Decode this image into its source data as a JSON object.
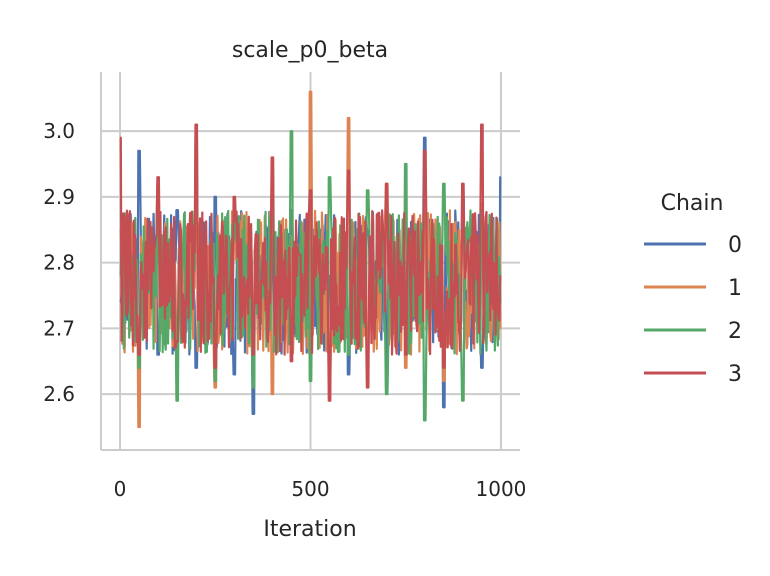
{
  "chart_data": {
    "type": "line",
    "title": "scale_p0_beta",
    "xlabel": "Iteration",
    "ylabel": "",
    "xlim": [
      -50,
      1050
    ],
    "ylim": [
      2.515,
      3.09
    ],
    "xticks": [
      0,
      500,
      1000
    ],
    "xtick_labels": [
      "0",
      "500",
      "1000"
    ],
    "yticks": [
      2.6,
      2.7,
      2.8,
      2.9,
      3.0
    ],
    "ytick_labels": [
      "2.6",
      "2.7",
      "2.8",
      "2.9",
      "3.0"
    ],
    "grid": true,
    "legend": {
      "title": "Chain",
      "placement": "right"
    },
    "series": [
      {
        "name": "0",
        "color": "#4c72b0",
        "x": [
          0,
          50,
          100,
          150,
          200,
          250,
          300,
          350,
          400,
          450,
          500,
          550,
          600,
          650,
          700,
          750,
          800,
          850,
          900,
          950,
          1000
        ],
        "values": [
          2.74,
          2.97,
          2.66,
          2.88,
          2.64,
          2.9,
          2.63,
          2.57,
          2.84,
          2.88,
          2.69,
          2.78,
          2.63,
          2.85,
          2.61,
          2.75,
          2.99,
          2.58,
          2.9,
          2.64,
          2.93
        ]
      },
      {
        "name": "1",
        "color": "#dd8452",
        "x": [
          0,
          50,
          100,
          150,
          200,
          250,
          300,
          350,
          400,
          450,
          500,
          550,
          600,
          650,
          700,
          750,
          800,
          850,
          900,
          950,
          1000
        ],
        "values": [
          2.85,
          2.55,
          2.92,
          2.66,
          2.93,
          2.61,
          2.88,
          2.7,
          2.6,
          2.84,
          3.06,
          2.62,
          3.02,
          2.66,
          2.92,
          2.64,
          2.9,
          2.62,
          2.86,
          2.89,
          2.7
        ]
      },
      {
        "name": "2",
        "color": "#55a868",
        "x": [
          0,
          50,
          100,
          150,
          200,
          250,
          300,
          350,
          400,
          450,
          500,
          550,
          600,
          650,
          700,
          750,
          800,
          850,
          900,
          950,
          1000
        ],
        "values": [
          2.78,
          2.64,
          2.9,
          2.59,
          2.99,
          2.62,
          2.87,
          2.61,
          2.93,
          3.0,
          2.62,
          2.93,
          2.66,
          2.91,
          2.6,
          2.95,
          2.56,
          2.92,
          2.59,
          2.88,
          2.74
        ]
      },
      {
        "name": "3",
        "color": "#c44e52",
        "x": [
          0,
          50,
          100,
          150,
          200,
          250,
          300,
          350,
          400,
          450,
          500,
          550,
          600,
          650,
          700,
          750,
          800,
          850,
          900,
          950,
          1000
        ],
        "values": [
          2.99,
          2.66,
          2.93,
          2.68,
          3.01,
          2.64,
          2.9,
          2.66,
          2.96,
          2.65,
          2.91,
          2.59,
          2.94,
          2.61,
          2.92,
          2.66,
          2.97,
          2.64,
          2.92,
          3.01,
          2.78
        ]
      }
    ]
  }
}
